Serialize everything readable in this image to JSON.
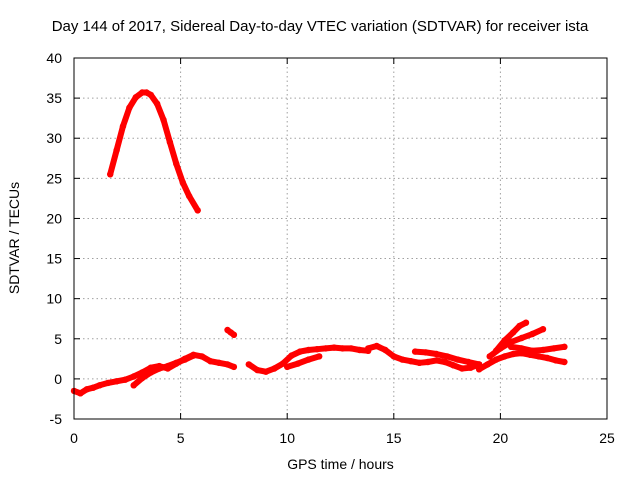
{
  "chart_data": {
    "type": "scatter",
    "title": "Day 144 of 2017, Sidereal Day-to-day VTEC variation (SDTVAR) for receiver ista",
    "xlabel": "GPS time / hours",
    "ylabel": "SDTVAR / TECUs",
    "xlim": [
      0,
      25
    ],
    "ylim": [
      -5,
      40
    ],
    "xticks": [
      0,
      5,
      10,
      15,
      20,
      25
    ],
    "yticks": [
      -5,
      0,
      5,
      10,
      15,
      20,
      25,
      30,
      35,
      40
    ],
    "grid": true,
    "color": "#ff0000",
    "series": [
      {
        "name": "arc-high",
        "x": [
          1.7,
          2.0,
          2.3,
          2.6,
          2.9,
          3.2,
          3.4,
          3.6,
          3.9,
          4.2,
          4.5,
          4.8,
          5.1,
          5.4,
          5.8
        ],
        "y": [
          25.5,
          28.5,
          31.5,
          33.8,
          35.1,
          35.7,
          35.7,
          35.4,
          34.3,
          32.3,
          29.5,
          26.8,
          24.5,
          22.8,
          21.0
        ]
      },
      {
        "name": "arc-low-1",
        "x": [
          0.0,
          0.3,
          0.6,
          0.9,
          1.2,
          1.6,
          2.0,
          2.4,
          2.8,
          3.2,
          3.6,
          4.0,
          4.4,
          4.8,
          5.2,
          5.6,
          6.0,
          6.4,
          6.8,
          7.2,
          7.5
        ],
        "y": [
          -1.5,
          -1.8,
          -1.3,
          -1.1,
          -0.8,
          -0.5,
          -0.3,
          -0.1,
          0.3,
          0.8,
          1.4,
          1.6,
          1.3,
          1.9,
          2.5,
          3.0,
          2.8,
          2.2,
          2.0,
          1.8,
          1.5
        ]
      },
      {
        "name": "arc-low-2",
        "x": [
          2.8,
          3.2,
          3.6,
          4.0,
          4.4,
          4.8,
          5.2,
          5.6
        ],
        "y": [
          -0.8,
          0.1,
          0.8,
          1.3,
          1.6,
          2.0,
          2.4,
          2.9
        ]
      },
      {
        "name": "arc-isolated",
        "x": [
          7.2,
          7.35,
          7.5
        ],
        "y": [
          6.1,
          5.8,
          5.5
        ]
      },
      {
        "name": "arc-low-3",
        "x": [
          8.2,
          8.6,
          9.0,
          9.4,
          9.8,
          10.2,
          10.6,
          11.0,
          11.4,
          11.8,
          12.2,
          12.6,
          13.0,
          13.4,
          13.8
        ],
        "y": [
          1.8,
          1.1,
          0.9,
          1.3,
          1.9,
          2.9,
          3.4,
          3.6,
          3.7,
          3.8,
          3.9,
          3.8,
          3.8,
          3.6,
          3.5
        ]
      },
      {
        "name": "arc-low-4",
        "x": [
          10.0,
          10.5,
          11.0,
          11.5
        ],
        "y": [
          1.5,
          1.9,
          2.4,
          2.8
        ]
      },
      {
        "name": "arc-low-5",
        "x": [
          13.8,
          14.2,
          14.6,
          15.0,
          15.4,
          15.8,
          16.2,
          16.6,
          17.0,
          17.4,
          17.8,
          18.2,
          18.6,
          19.0
        ],
        "y": [
          3.8,
          4.1,
          3.6,
          2.8,
          2.4,
          2.2,
          2.0,
          2.1,
          2.3,
          2.1,
          1.7,
          1.3,
          1.4,
          1.8
        ]
      },
      {
        "name": "arc-low-6",
        "x": [
          16.0,
          16.5,
          17.0,
          17.5,
          18.0,
          18.5,
          19.0
        ],
        "y": [
          3.4,
          3.3,
          3.1,
          2.8,
          2.4,
          2.1,
          1.8
        ]
      },
      {
        "name": "arc-low-7",
        "x": [
          19.0,
          19.4,
          19.8,
          20.2,
          20.6,
          21.0,
          21.4,
          21.8,
          22.2,
          22.6,
          23.0
        ],
        "y": [
          1.2,
          1.8,
          2.4,
          2.8,
          3.1,
          3.2,
          3.0,
          2.8,
          2.6,
          2.3,
          2.1
        ]
      },
      {
        "name": "arc-low-8",
        "x": [
          19.5,
          20.0,
          20.5,
          21.0,
          21.5,
          22.0
        ],
        "y": [
          2.8,
          3.8,
          4.6,
          5.1,
          5.6,
          6.2
        ]
      },
      {
        "name": "arc-low-9",
        "x": [
          19.8,
          20.2,
          20.6,
          20.9,
          21.2
        ],
        "y": [
          3.5,
          4.8,
          5.8,
          6.6,
          7.0
        ]
      },
      {
        "name": "arc-low-10",
        "x": [
          20.5,
          21.0,
          21.5,
          22.0,
          22.5,
          23.0
        ],
        "y": [
          4.0,
          3.8,
          3.5,
          3.6,
          3.8,
          4.0
        ]
      }
    ]
  }
}
